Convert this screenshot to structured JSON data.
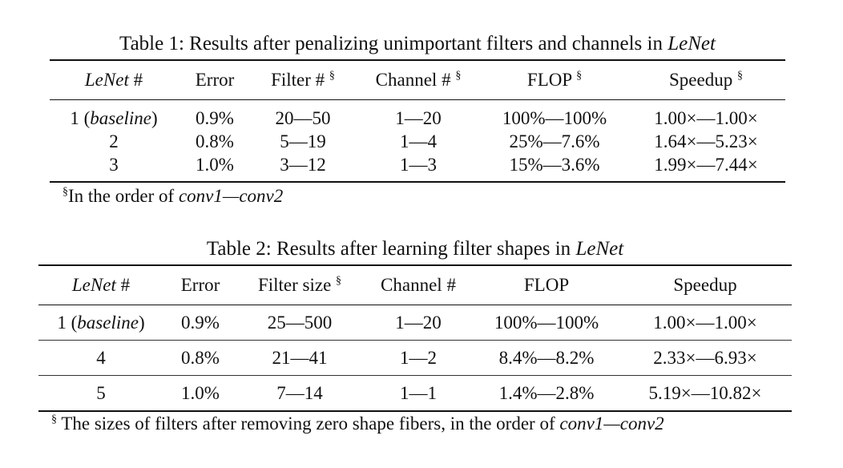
{
  "table1": {
    "caption_prefix": "Table 1:",
    "caption_text": "Results after penalizing unimportant filters and channels in",
    "caption_italic": "LeNet",
    "headers": [
      {
        "italic": "LeNet",
        "text": " #",
        "sup": ""
      },
      {
        "italic": "",
        "text": "Error",
        "sup": ""
      },
      {
        "italic": "",
        "text": "Filter #",
        "sup": "§"
      },
      {
        "italic": "",
        "text": "Channel #",
        "sup": "§"
      },
      {
        "italic": "",
        "text": "FLOP",
        "sup": "§"
      },
      {
        "italic": "",
        "text": "Speedup",
        "sup": "§"
      }
    ],
    "rows": [
      {
        "id": "1",
        "id_italic": "baseline",
        "error": "0.9%",
        "filter": "20—50",
        "channel": "1—20",
        "flop": "100%—100%",
        "speedup": "1.00×—1.00×"
      },
      {
        "id": "2",
        "id_italic": "",
        "error": "0.8%",
        "filter": "5—19",
        "channel": "1—4",
        "flop": "25%—7.6%",
        "speedup": "1.64×—5.23×"
      },
      {
        "id": "3",
        "id_italic": "",
        "error": "1.0%",
        "filter": "3—12",
        "channel": "1—3",
        "flop": "15%—3.6%",
        "speedup": "1.99×—7.44×"
      }
    ],
    "footnote_sup": "§",
    "footnote_text": "In the order of ",
    "footnote_italic": "conv1—conv2"
  },
  "table2": {
    "caption_prefix": "Table 2:",
    "caption_text": "Results after learning filter shapes in",
    "caption_italic": "LeNet",
    "headers": [
      {
        "italic": "LeNet",
        "text": " #",
        "sup": ""
      },
      {
        "italic": "",
        "text": "Error",
        "sup": ""
      },
      {
        "italic": "",
        "text": "Filter size",
        "sup": "§"
      },
      {
        "italic": "",
        "text": "Channel #",
        "sup": ""
      },
      {
        "italic": "",
        "text": "FLOP",
        "sup": ""
      },
      {
        "italic": "",
        "text": "Speedup",
        "sup": ""
      }
    ],
    "rows": [
      {
        "id": "1",
        "id_italic": "baseline",
        "error": "0.9%",
        "filter": "25—500",
        "channel": "1—20",
        "flop": "100%—100%",
        "speedup": "1.00×—1.00×"
      },
      {
        "id": "4",
        "id_italic": "",
        "error": "0.8%",
        "filter": "21—41",
        "channel": "1—2",
        "flop": "8.4%—8.2%",
        "speedup": "2.33×—6.93×"
      },
      {
        "id": "5",
        "id_italic": "",
        "error": "1.0%",
        "filter": "7—14",
        "channel": "1—1",
        "flop": "1.4%—2.8%",
        "speedup": "5.19×—10.82×"
      }
    ],
    "footnote_sup": "§",
    "footnote_text": " The sizes of filters after removing zero shape fibers, in the order of ",
    "footnote_italic": "conv1—conv2"
  }
}
